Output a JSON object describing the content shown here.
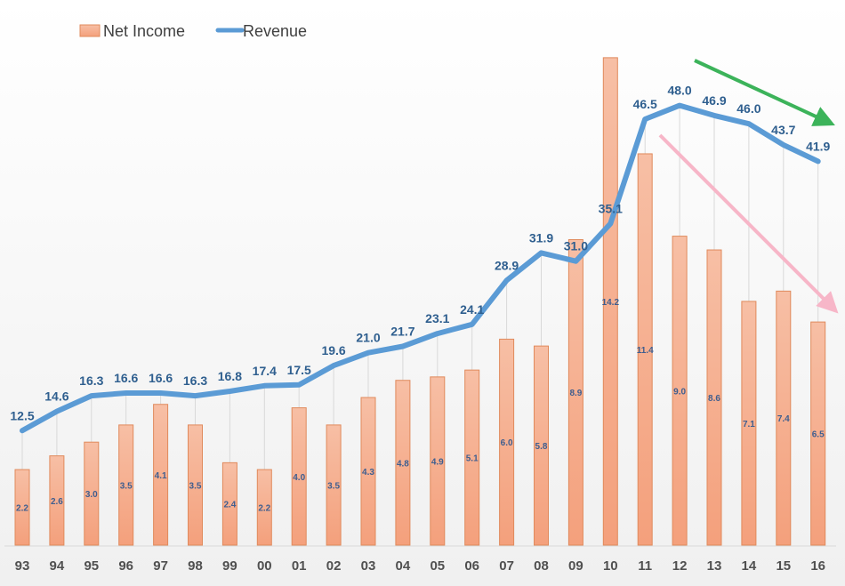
{
  "chart_data": {
    "type": "bar+line",
    "categories": [
      "93",
      "94",
      "95",
      "96",
      "97",
      "98",
      "99",
      "00",
      "01",
      "02",
      "03",
      "04",
      "05",
      "06",
      "07",
      "08",
      "09",
      "10",
      "11",
      "12",
      "13",
      "14",
      "15",
      "16"
    ],
    "series": [
      {
        "name": "Net Income",
        "type": "bar",
        "color": "#f4a582",
        "values": [
          2.2,
          2.6,
          3.0,
          3.5,
          4.1,
          3.5,
          2.4,
          2.2,
          4.0,
          3.5,
          4.3,
          4.8,
          4.9,
          5.1,
          6.0,
          5.8,
          8.9,
          14.2,
          11.4,
          9.0,
          8.6,
          7.1,
          7.4,
          6.5
        ]
      },
      {
        "name": "Revenue",
        "type": "line",
        "color": "#5b9bd5",
        "values": [
          12.5,
          14.6,
          16.3,
          16.6,
          16.6,
          16.3,
          16.8,
          17.4,
          17.5,
          19.6,
          21.0,
          21.7,
          23.1,
          24.1,
          28.9,
          31.9,
          31.0,
          35.1,
          46.5,
          48.0,
          46.9,
          46.0,
          43.7,
          41.9
        ]
      }
    ],
    "annotations": [
      {
        "type": "arrow",
        "color": "#3cb35a",
        "meaning": "revenue declining trend"
      },
      {
        "type": "arrow",
        "color": "#f7b6c8",
        "meaning": "net income declining trend"
      }
    ],
    "legend_position": "top-left",
    "grid": false,
    "title": "",
    "xlabel": "",
    "ylabel": ""
  }
}
